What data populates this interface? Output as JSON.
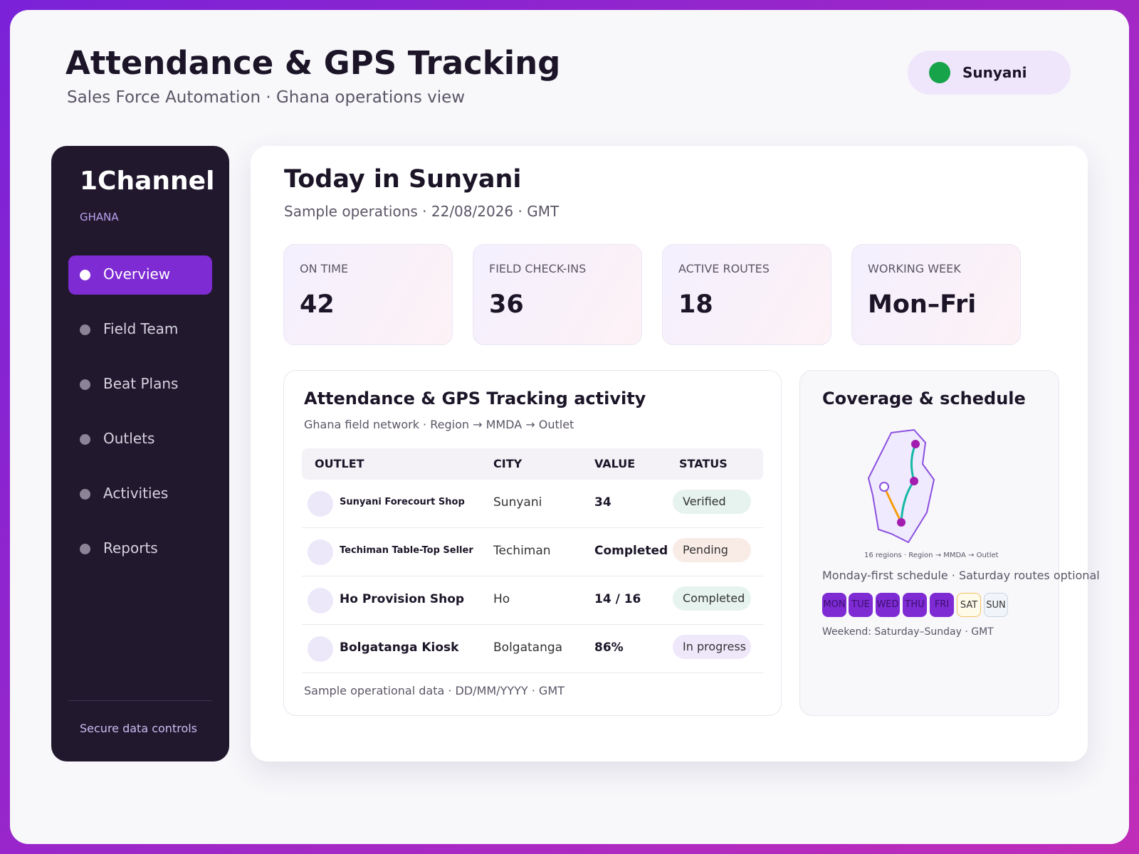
{
  "header": {
    "title": "Attendance & GPS Tracking",
    "subtitle": "Sales Force Automation · Ghana operations view",
    "location": "Sunyani"
  },
  "sidebar": {
    "brand": "1Channel",
    "country": "GHANA",
    "nav": [
      "Overview",
      "Field Team",
      "Beat Plans",
      "Outlets",
      "Activities",
      "Reports"
    ],
    "footer": "Secure data controls"
  },
  "main": {
    "title": "Today in Sunyani",
    "subtitle": "Sample operations · 22/08/2026 · GMT"
  },
  "stats": [
    {
      "label": "ON TIME",
      "value": 42
    },
    {
      "label": "FIELD CHECK-INS",
      "value": 36
    },
    {
      "label": "ACTIVE ROUTES",
      "value": 18
    },
    {
      "label": "WORKING WEEK",
      "value": "Mon–Fri"
    }
  ],
  "table": {
    "title": "Attendance & GPS Tracking activity",
    "subtitle": "Ghana field network · Region → MMDA → Outlet",
    "columns": [
      "OUTLET",
      "CITY",
      "VALUE",
      "STATUS"
    ],
    "rows": [
      [
        "Sunyani Forecourt Shop",
        "Sunyani",
        "34",
        "Verified"
      ],
      [
        "Techiman Table-Top Seller",
        "Techiman",
        "Completed",
        "Pending"
      ],
      [
        "Ho Provision Shop",
        "Ho",
        "14 / 16",
        "Completed"
      ],
      [
        "Bolgatanga Kiosk",
        "Bolgatanga",
        "86%",
        "In progress"
      ]
    ],
    "footer": "Sample operational data · DD/MM/YYYY · GMT"
  },
  "coverage": {
    "title": "Coverage & schedule",
    "map_caption": "16 regions · Region → MMDA → Outlet",
    "schedule_note": "Monday-first schedule · Saturday routes optional",
    "days": [
      "MON",
      "TUE",
      "WED",
      "THU",
      "FRI",
      "SAT",
      "SUN"
    ],
    "weekend_note": "Weekend: Saturday–Sunday · GMT"
  }
}
